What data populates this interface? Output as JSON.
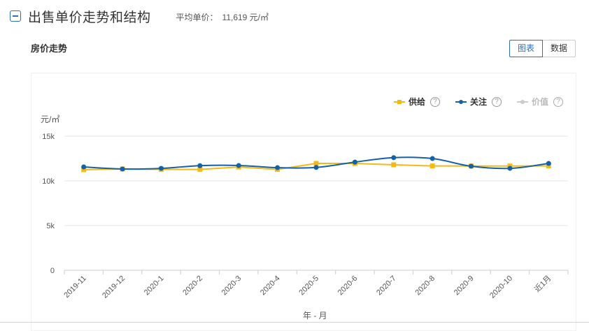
{
  "header": {
    "title": "出售单价走势和结构",
    "avg_label": "平均单价：",
    "avg_value": "11,619 元/㎡"
  },
  "section": {
    "title": "房价走势"
  },
  "toggle": {
    "chart_label": "图表",
    "data_label": "数据",
    "active": "图表"
  },
  "legend": [
    {
      "label": "供给",
      "color": "#f5b915",
      "enabled": true,
      "help": "?"
    },
    {
      "label": "关注",
      "color": "#1361a6",
      "enabled": true,
      "help": "?"
    },
    {
      "label": "价值",
      "color": "#cccccc",
      "enabled": false,
      "help": "?"
    }
  ],
  "chart_data": {
    "type": "line",
    "title": "房价走势",
    "xlabel": "年 - 月",
    "ylabel": "元/㎡",
    "categories": [
      "2019-11",
      "2019-12",
      "2020-1",
      "2020-2",
      "2020-3",
      "2020-4",
      "2020-5",
      "2020-6",
      "2020-7",
      "2020-8",
      "2020-9",
      "2020-10",
      "近1月"
    ],
    "yticks": [
      "0",
      "5k",
      "10k",
      "15k"
    ],
    "ylim": [
      0,
      15000
    ],
    "grid": true,
    "legend_position": "top-right",
    "series": [
      {
        "name": "供给",
        "color": "#f5b915",
        "marker": "square",
        "smooth": false,
        "values": [
          11250,
          11330,
          11280,
          11280,
          11550,
          11280,
          11950,
          11950,
          11800,
          11670,
          11660,
          11660,
          11670
        ]
      },
      {
        "name": "关注",
        "color": "#1361a6",
        "marker": "circle",
        "smooth": true,
        "values": [
          11560,
          11330,
          11400,
          11700,
          11720,
          11480,
          11500,
          12100,
          12600,
          12500,
          11640,
          11400,
          11950
        ]
      },
      {
        "name": "价值",
        "color": "#cccccc",
        "marker": "circle",
        "hidden": true,
        "values": []
      }
    ]
  }
}
